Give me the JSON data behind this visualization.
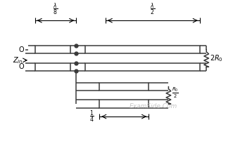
{
  "bg_color": "#ffffff",
  "line_color": "#3a3a3a",
  "text_color": "#000000",
  "zin_label": "$Z_{in}$",
  "label_2R0": "$2R_0$",
  "label_R0_2": "$\\frac{R_0}{2}$",
  "label_lambda_8": "$\\frac{\\lambda}{8}$",
  "label_lambda_2": "$\\frac{\\lambda}{2}$",
  "label_quarter": "$\\frac{1}{4}$",
  "watermark": "ExamSide.Com",
  "figw": 3.58,
  "figh": 2.18,
  "dpi": 100
}
